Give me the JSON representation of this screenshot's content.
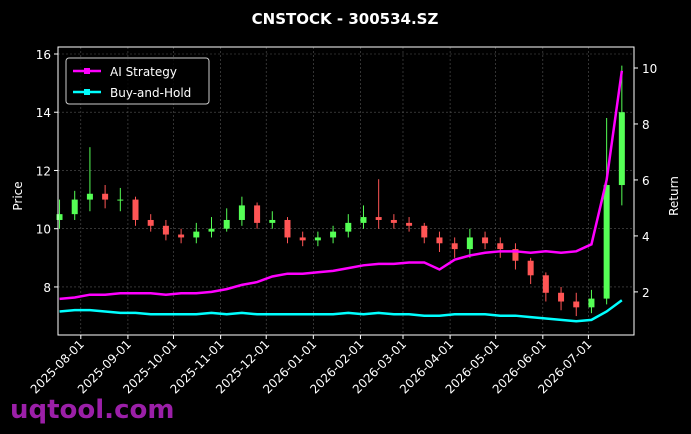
{
  "chart_data": {
    "type": "candlestick",
    "title": "CNSTOCK - 300534.SZ",
    "ylabel": "Price",
    "y2label": "Return",
    "watermark": "uqtool.com",
    "dates": [
      "2025-07-18",
      "2025-07-28",
      "2025-08-07",
      "2025-08-17",
      "2025-08-27",
      "2025-09-06",
      "2025-09-16",
      "2025-09-26",
      "2025-10-06",
      "2025-10-16",
      "2025-10-26",
      "2025-11-05",
      "2025-11-15",
      "2025-11-25",
      "2025-12-05",
      "2025-12-15",
      "2025-12-25",
      "2026-01-04",
      "2026-01-14",
      "2026-01-24",
      "2026-02-03",
      "2026-02-13",
      "2026-02-23",
      "2026-03-05",
      "2026-03-15",
      "2026-03-25",
      "2026-04-04",
      "2026-04-14",
      "2026-04-24",
      "2026-05-04",
      "2026-05-14",
      "2026-05-24",
      "2026-06-03",
      "2026-06-13",
      "2026-06-23",
      "2026-07-03",
      "2026-07-13",
      "2026-07-23"
    ],
    "open": [
      10.3,
      10.5,
      11.0,
      11.2,
      11.0,
      11.0,
      10.3,
      10.1,
      9.8,
      9.7,
      9.9,
      10.0,
      10.3,
      10.8,
      10.2,
      10.3,
      9.7,
      9.6,
      9.7,
      9.9,
      10.2,
      10.4,
      10.3,
      10.2,
      10.1,
      9.7,
      9.5,
      9.3,
      9.7,
      9.5,
      9.3,
      8.9,
      8.4,
      7.8,
      7.5,
      7.3,
      7.6,
      11.5
    ],
    "high": [
      11.0,
      11.3,
      12.8,
      11.5,
      11.4,
      11.1,
      10.5,
      10.3,
      10.0,
      10.2,
      10.4,
      10.7,
      11.1,
      10.9,
      10.6,
      10.4,
      9.9,
      9.9,
      10.1,
      10.5,
      10.8,
      11.7,
      10.5,
      10.4,
      10.2,
      9.9,
      9.7,
      10.0,
      9.9,
      9.7,
      9.5,
      9.0,
      8.5,
      8.0,
      7.8,
      7.9,
      13.8,
      15.6
    ],
    "low": [
      10.0,
      10.3,
      10.6,
      10.7,
      10.6,
      10.1,
      9.9,
      9.6,
      9.5,
      9.5,
      9.7,
      9.9,
      10.1,
      10.0,
      10.0,
      9.5,
      9.4,
      9.4,
      9.5,
      9.7,
      10.0,
      10.0,
      10.0,
      9.9,
      9.5,
      9.2,
      9.0,
      9.0,
      9.3,
      9.0,
      8.6,
      8.1,
      7.5,
      7.2,
      7.0,
      7.1,
      7.4,
      10.8
    ],
    "close": [
      10.5,
      11.0,
      11.2,
      11.0,
      11.0,
      10.3,
      10.1,
      9.8,
      9.7,
      9.9,
      10.0,
      10.3,
      10.8,
      10.2,
      10.3,
      9.7,
      9.6,
      9.7,
      9.9,
      10.2,
      10.4,
      10.3,
      10.2,
      10.1,
      9.7,
      9.5,
      9.3,
      9.7,
      9.5,
      9.3,
      8.9,
      8.4,
      7.8,
      7.5,
      7.3,
      7.6,
      11.5,
      14.0
    ],
    "up_color": "#55ff55",
    "down_color": "#ff5555",
    "series": [
      {
        "name": "AI Strategy",
        "color": "#ff00ff",
        "axis": "y2",
        "values": [
          1.75,
          1.8,
          1.9,
          1.9,
          1.95,
          1.95,
          1.95,
          1.9,
          1.95,
          1.95,
          2.0,
          2.1,
          2.25,
          2.35,
          2.55,
          2.65,
          2.65,
          2.7,
          2.75,
          2.85,
          2.95,
          3.0,
          3.0,
          3.05,
          3.05,
          2.8,
          3.15,
          3.3,
          3.4,
          3.45,
          3.45,
          3.4,
          3.45,
          3.4,
          3.45,
          3.7,
          6.0,
          9.9
        ]
      },
      {
        "name": "Buy-and-Hold",
        "color": "#00ffff",
        "axis": "y2",
        "values": [
          1.3,
          1.35,
          1.35,
          1.3,
          1.25,
          1.25,
          1.2,
          1.2,
          1.2,
          1.2,
          1.25,
          1.2,
          1.25,
          1.2,
          1.2,
          1.2,
          1.2,
          1.2,
          1.2,
          1.25,
          1.2,
          1.25,
          1.2,
          1.2,
          1.15,
          1.15,
          1.2,
          1.2,
          1.2,
          1.15,
          1.15,
          1.1,
          1.05,
          1.0,
          0.95,
          1.0,
          1.3,
          1.7
        ]
      }
    ],
    "xlim": [
      "2025-07-17",
      "2026-07-31"
    ],
    "xticks": [
      "2025-08-01",
      "2025-09-01",
      "2025-10-01",
      "2025-11-01",
      "2025-12-01",
      "2026-01-01",
      "2026-02-01",
      "2026-03-01",
      "2026-04-01",
      "2026-05-01",
      "2026-06-01",
      "2026-07-01"
    ],
    "ylim": [
      6.35,
      16.24
    ],
    "yticks": [
      8,
      10,
      12,
      14,
      16
    ],
    "y2lim": [
      0.46,
      10.75
    ],
    "y2ticks": [
      2,
      4,
      6,
      8,
      10
    ],
    "grid": true,
    "legend": "upper left"
  }
}
